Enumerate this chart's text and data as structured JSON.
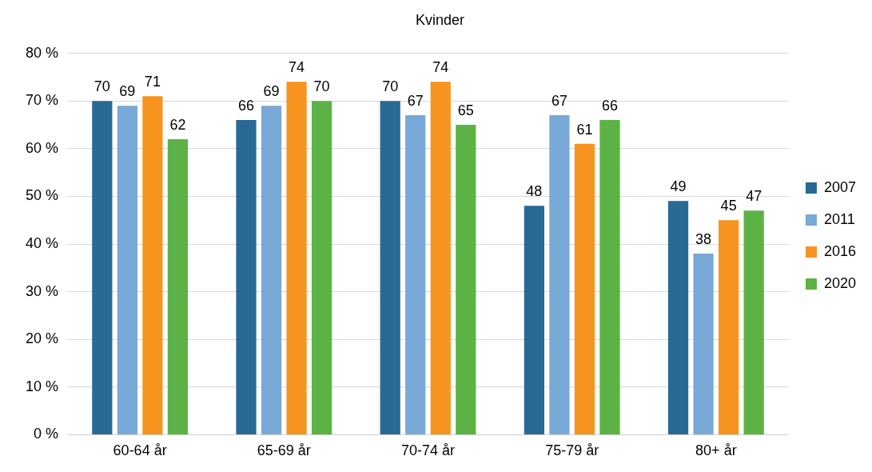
{
  "chart_data": {
    "type": "bar",
    "title": "Kvinder",
    "categories": [
      "60-64 år",
      "65-69 år",
      "70-74 år",
      "75-79 år",
      "80+ år"
    ],
    "series": [
      {
        "name": "2007",
        "color": "#286a95",
        "values": [
          70,
          66,
          70,
          48,
          49
        ]
      },
      {
        "name": "2011",
        "color": "#78a9d7",
        "values": [
          69,
          69,
          67,
          67,
          38
        ]
      },
      {
        "name": "2016",
        "color": "#f7941f",
        "values": [
          71,
          74,
          74,
          61,
          45
        ]
      },
      {
        "name": "2020",
        "color": "#5db246",
        "values": [
          62,
          70,
          65,
          66,
          47
        ]
      }
    ],
    "ylim": [
      0,
      80
    ],
    "yticks": [
      {
        "value": 0,
        "label": "0 %"
      },
      {
        "value": 10,
        "label": "10 %"
      },
      {
        "value": 20,
        "label": "20 %"
      },
      {
        "value": 30,
        "label": "30 %"
      },
      {
        "value": 40,
        "label": "40 %"
      },
      {
        "value": 50,
        "label": "50 %"
      },
      {
        "value": 60,
        "label": "60 %"
      },
      {
        "value": 70,
        "label": "70 %"
      },
      {
        "value": 80,
        "label": "80 %"
      }
    ],
    "grid": "y",
    "legend": "right",
    "data_labels": true
  }
}
